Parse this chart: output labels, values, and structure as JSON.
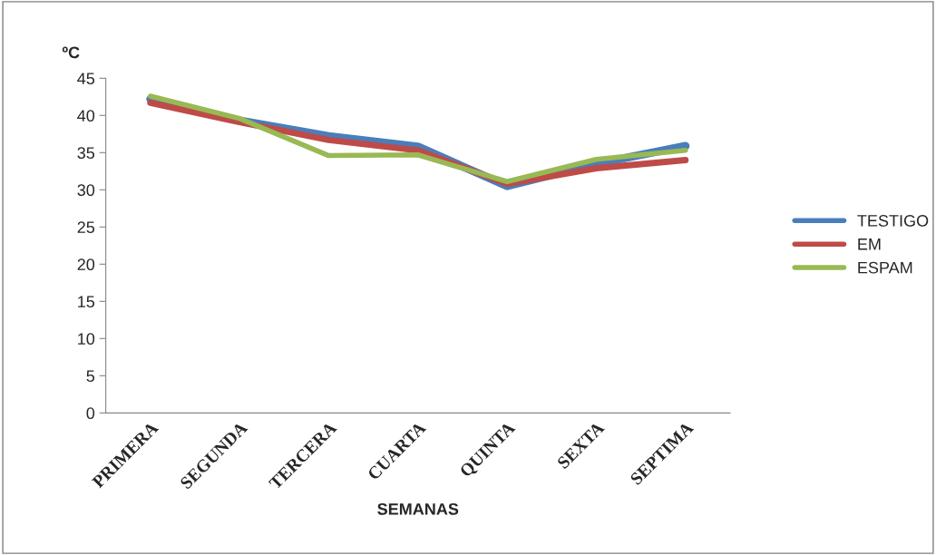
{
  "chart_data": {
    "type": "line",
    "ylabel": "ºC",
    "xlabel": "SEMANAS",
    "categories": [
      "PRIMERA",
      "SEGUNDA",
      "TERCERA",
      "CUARTA",
      "QUINTA",
      "SEXTA",
      "SEPTIMA"
    ],
    "series": [
      {
        "name": "TESTIGO",
        "color": "#4a7ebb",
        "values": [
          42.2,
          39.3,
          37.2,
          35.8,
          30.5,
          33.5,
          35.9
        ]
      },
      {
        "name": "EM",
        "color": "#be4b48",
        "values": [
          41.7,
          39.1,
          36.7,
          35.3,
          30.8,
          32.9,
          34.0
        ]
      },
      {
        "name": "ESPAM",
        "color": "#98b954",
        "values": [
          42.6,
          39.6,
          34.6,
          34.7,
          31.1,
          34.1,
          35.3
        ]
      }
    ],
    "ylim": [
      0,
      45
    ],
    "yticks": [
      0,
      5,
      10,
      15,
      20,
      25,
      30,
      35,
      40,
      45
    ],
    "grid": false,
    "legend": "right",
    "line_style": "solid",
    "marker": "none"
  }
}
